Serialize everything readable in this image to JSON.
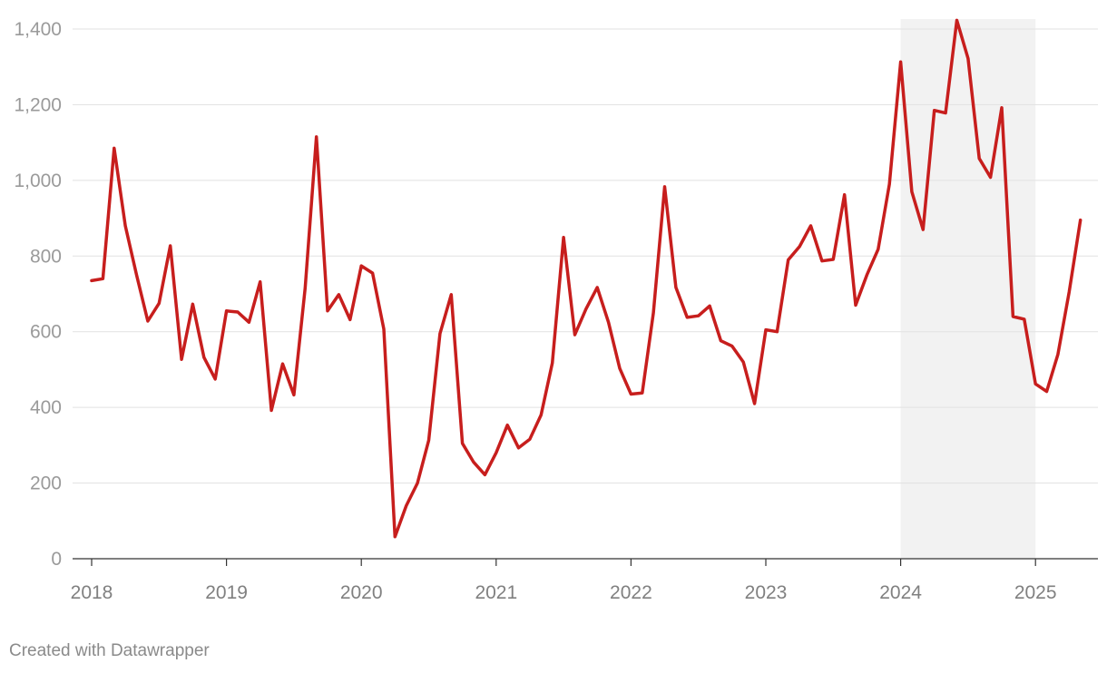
{
  "chart_data": {
    "type": "line",
    "title": "",
    "xlabel": "",
    "ylabel": "",
    "ylim": [
      0,
      1400
    ],
    "yticks": [
      0,
      200,
      400,
      600,
      800,
      1000,
      1200,
      1400
    ],
    "ytick_labels": [
      "0",
      "200",
      "400",
      "600",
      "800",
      "1,000",
      "1,200",
      "1,400"
    ],
    "xticks": [
      2018,
      2019,
      2020,
      2021,
      2022,
      2023,
      2024,
      2025
    ],
    "xtick_labels": [
      "2018",
      "2019",
      "2020",
      "2021",
      "2022",
      "2023",
      "2024",
      "2025"
    ],
    "x_start": 2018.0,
    "x_step": 0.08333,
    "highlight_range": [
      2024.0,
      2025.0
    ],
    "highlight_color": "#f2f2f2",
    "series": [
      {
        "name": "value",
        "color": "#c71e1d",
        "values": [
          735,
          740,
          1085,
          880,
          750,
          628,
          675,
          827,
          527,
          673,
          532,
          475,
          655,
          652,
          625,
          732,
          392,
          515,
          433,
          715,
          1115,
          655,
          698,
          632,
          774,
          755,
          607,
          58,
          140,
          200,
          313,
          595,
          698,
          305,
          255,
          222,
          280,
          353,
          293,
          316,
          380,
          517,
          849,
          592,
          660,
          717,
          625,
          503,
          435,
          438,
          650,
          983,
          717,
          638,
          642,
          668,
          576,
          562,
          520,
          410,
          605,
          600,
          790,
          825,
          880,
          787,
          791,
          962,
          670,
          750,
          818,
          990,
          1313,
          970,
          870,
          1185,
          1178,
          1423,
          1322,
          1058,
          1008,
          1192,
          640,
          633,
          462,
          442,
          540,
          705,
          895
        ]
      }
    ]
  },
  "footer": {
    "credit": "Created with Datawrapper"
  }
}
